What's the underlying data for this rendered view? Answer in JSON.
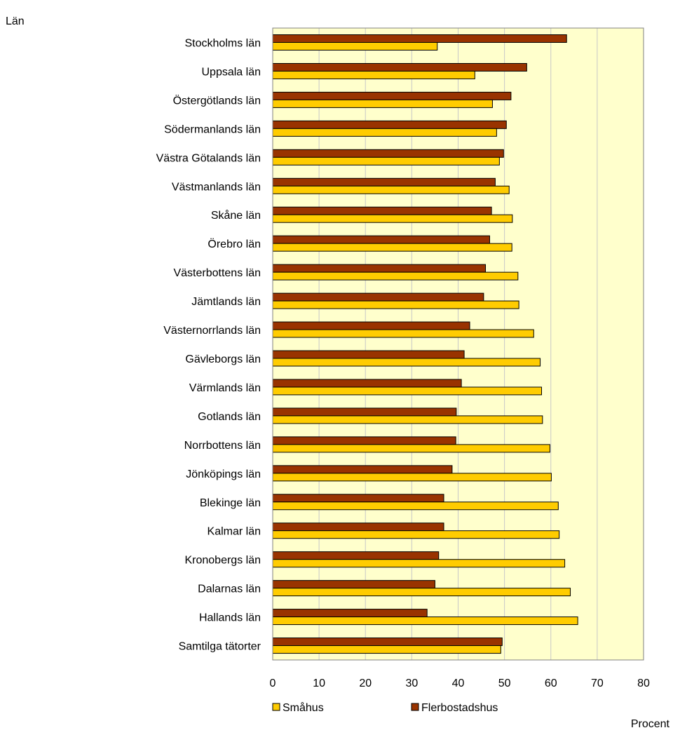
{
  "chart_data": {
    "type": "bar",
    "orientation": "horizontal",
    "ylabel": "Län",
    "xlabel": "Procent",
    "xlim": [
      0,
      80
    ],
    "xticks": [
      "0",
      "10",
      "20",
      "30",
      "40",
      "50",
      "60",
      "70",
      "80"
    ],
    "grid": "vertical",
    "legend_position": "bottom",
    "categories": [
      "Stockholms län",
      "Uppsala län",
      "Östergötlands län",
      "Södermanlands län",
      "Västra Götalands län",
      "Västmanlands län",
      "Skåne län",
      "Örebro län",
      "Västerbottens län",
      "Jämtlands län",
      "Västernorrlands län",
      "Gävleborgs län",
      "Värmlands län",
      "Gotlands län",
      "Norrbottens län",
      "Jönköpings län",
      "Blekinge län",
      "Kalmar län",
      "Kronobergs län",
      "Dalarnas län",
      "Hallands län",
      "Samtilga tätorter"
    ],
    "series": [
      {
        "name": "Flerbostadshus",
        "color": "#993300",
        "values": [
          63.4,
          54.8,
          51.4,
          50.4,
          49.8,
          48.0,
          47.2,
          46.8,
          45.9,
          45.5,
          42.5,
          41.3,
          40.7,
          39.6,
          39.5,
          38.7,
          36.9,
          36.9,
          35.8,
          35.0,
          33.3,
          49.5
        ]
      },
      {
        "name": "Småhus",
        "color": "#FFCC00",
        "values": [
          35.5,
          43.6,
          47.4,
          48.3,
          48.9,
          51.0,
          51.7,
          51.6,
          52.9,
          53.1,
          56.3,
          57.7,
          58.0,
          58.2,
          59.8,
          60.1,
          61.6,
          61.8,
          63.0,
          64.2,
          65.8,
          49.2
        ]
      }
    ],
    "legend": [
      {
        "name": "Småhus",
        "color": "#FFCC00"
      },
      {
        "name": "Flerbostadshus",
        "color": "#993300"
      }
    ],
    "colors": {
      "plot_background": "#FFFFCC",
      "grid": "#C8C8C8",
      "border": "#808080",
      "bar_outline": "#000000"
    }
  }
}
